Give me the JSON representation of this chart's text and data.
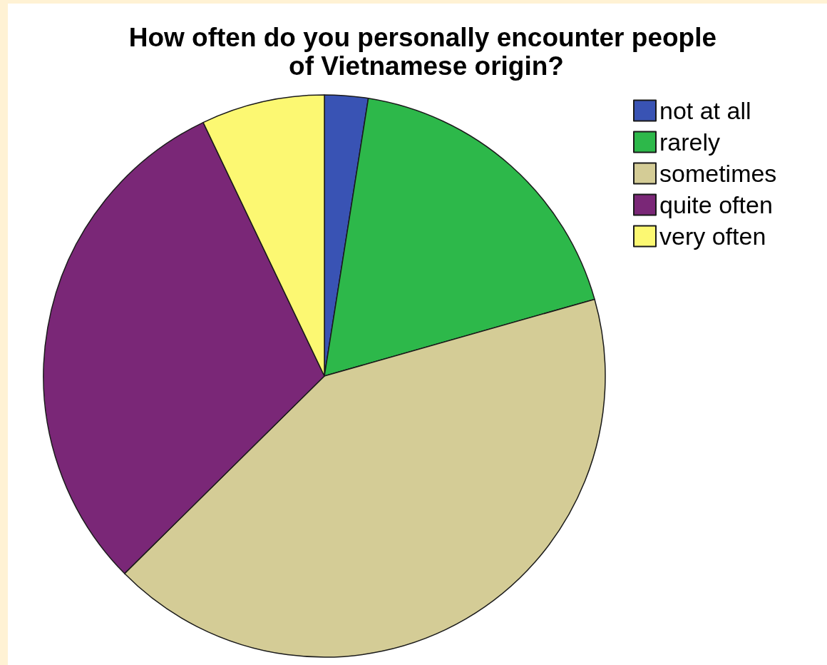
{
  "chart_data": {
    "type": "pie",
    "title": "How often do you personally encounter people of Vietnamese origin?",
    "categories": [
      "not at all",
      "rarely",
      "sometimes",
      "quite often",
      "very often"
    ],
    "values": [
      2.5,
      18.1,
      42.0,
      30.3,
      7.1
    ],
    "colors": [
      "#3953b4",
      "#2db84a",
      "#d4cc96",
      "#7a2777",
      "#fcf872"
    ],
    "legend": "top right"
  }
}
